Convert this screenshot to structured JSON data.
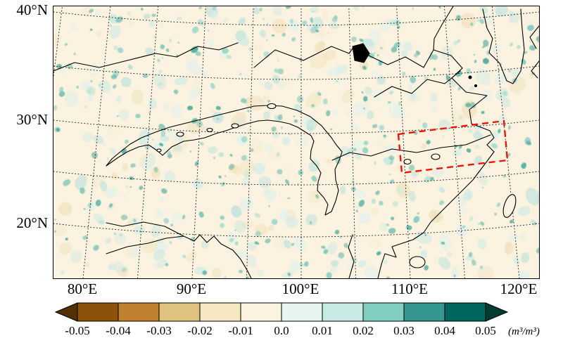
{
  "axes": {
    "lat_labels": [
      "40°N",
      "30°N",
      "20°N"
    ],
    "lon_labels": [
      "80°E",
      "90°E",
      "100°E",
      "110°E",
      "120°E"
    ]
  },
  "colorbar": {
    "ticks": [
      "-0.05",
      "-0.04",
      "-0.03",
      "-0.02",
      "-0.01",
      "0.0",
      "0.01",
      "0.02",
      "0.03",
      "0.04",
      "0.05"
    ],
    "unit": "(m³/m³)",
    "colors": [
      "#543005",
      "#8c510a",
      "#bf812d",
      "#dfc27d",
      "#f6e8c3",
      "#fbf3e0",
      "#e7f5f1",
      "#c7eae5",
      "#80cdc1",
      "#35978f",
      "#01665e",
      "#003c30"
    ]
  },
  "map": {
    "background": "#fbf3e0",
    "land_outline_color": "#000000",
    "highlight_box_color": "#ed1509",
    "noise_palette": {
      "teal": [
        "#ddf1ee",
        "#cdeae5",
        "#bbe2dc",
        "#9cd5cd",
        "#7ec7bd",
        "#5fb5a9",
        "#49a89b"
      ],
      "warm": [
        "#f6ecd2",
        "#f1e3bf",
        "#efdfb6"
      ]
    }
  },
  "chart_data": {
    "type": "heatmap",
    "title": "",
    "projection": "conic (Lambert-style) map of East / South Asia with curved dotted graticule",
    "x_axis": {
      "label": "Longitude",
      "tick_labels": [
        "80°E",
        "90°E",
        "100°E",
        "110°E",
        "120°E"
      ]
    },
    "y_axis": {
      "label": "Latitude",
      "tick_labels": [
        "40°N",
        "30°N",
        "20°N"
      ]
    },
    "colorbar": {
      "tick_values": [
        -0.05,
        -0.04,
        -0.03,
        -0.02,
        -0.01,
        0.0,
        0.01,
        0.02,
        0.03,
        0.04,
        0.05
      ],
      "units": "m³/m³",
      "colormap": "BrBG-style (dark brown → cream → dark teal), discrete 0.01 bins, extended triangles both ends",
      "extend": "both"
    },
    "field_description": "Soil-moisture-like difference field: values mostly in the -0.01 to 0.02 range, rendered as a cream background densely speckled with small pale-teal patches over the whole domain; no large coherent anomaly regions",
    "annotations": [
      {
        "type": "dashed_box",
        "color": "red",
        "approx_lon_range": "107°E – 119°E",
        "approx_lat_range": "26°N – 31°N",
        "note": "tilted red dashed rectangle over eastern China"
      }
    ],
    "grid": "dotted graticule every 5° latitude / 5–10° longitude",
    "legend_position": "horizontal colorbar below map"
  }
}
